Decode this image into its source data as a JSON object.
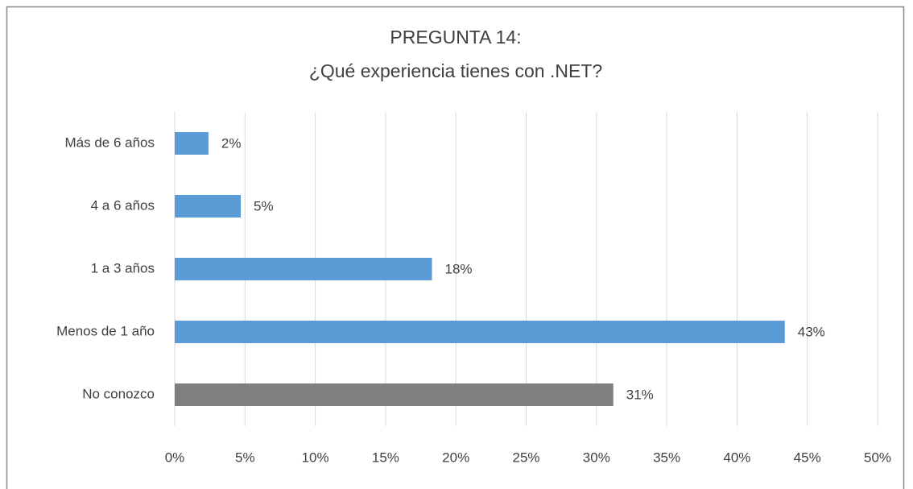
{
  "chart_data": {
    "type": "bar",
    "orientation": "horizontal",
    "title": [
      "PREGUNTA 14:",
      "¿Qué experiencia tienes con .NET?"
    ],
    "categories": [
      "Más de 6 años",
      "4 a 6 años",
      "1 a 3 años",
      "Menos de 1 año",
      "No conozco"
    ],
    "values": [
      2.4,
      4.7,
      18.3,
      43.4,
      31.2
    ],
    "value_labels": [
      "2%",
      "5%",
      "18%",
      "43%",
      "31%"
    ],
    "colors": [
      "#5b9bd5",
      "#5b9bd5",
      "#5b9bd5",
      "#5b9bd5",
      "#7f7f7f"
    ],
    "xlim": [
      0,
      50
    ],
    "xticks": [
      {
        "value": 0,
        "label": "0%"
      },
      {
        "value": 5,
        "label": "5%"
      },
      {
        "value": 10,
        "label": "10%"
      },
      {
        "value": 15,
        "label": "15%"
      },
      {
        "value": 20,
        "label": "20%"
      },
      {
        "value": 25,
        "label": "25%"
      },
      {
        "value": 30,
        "label": "30%"
      },
      {
        "value": 35,
        "label": "35%"
      },
      {
        "value": 40,
        "label": "40%"
      },
      {
        "value": 45,
        "label": "45%"
      },
      {
        "value": 50,
        "label": "50%"
      }
    ],
    "grid": true
  }
}
